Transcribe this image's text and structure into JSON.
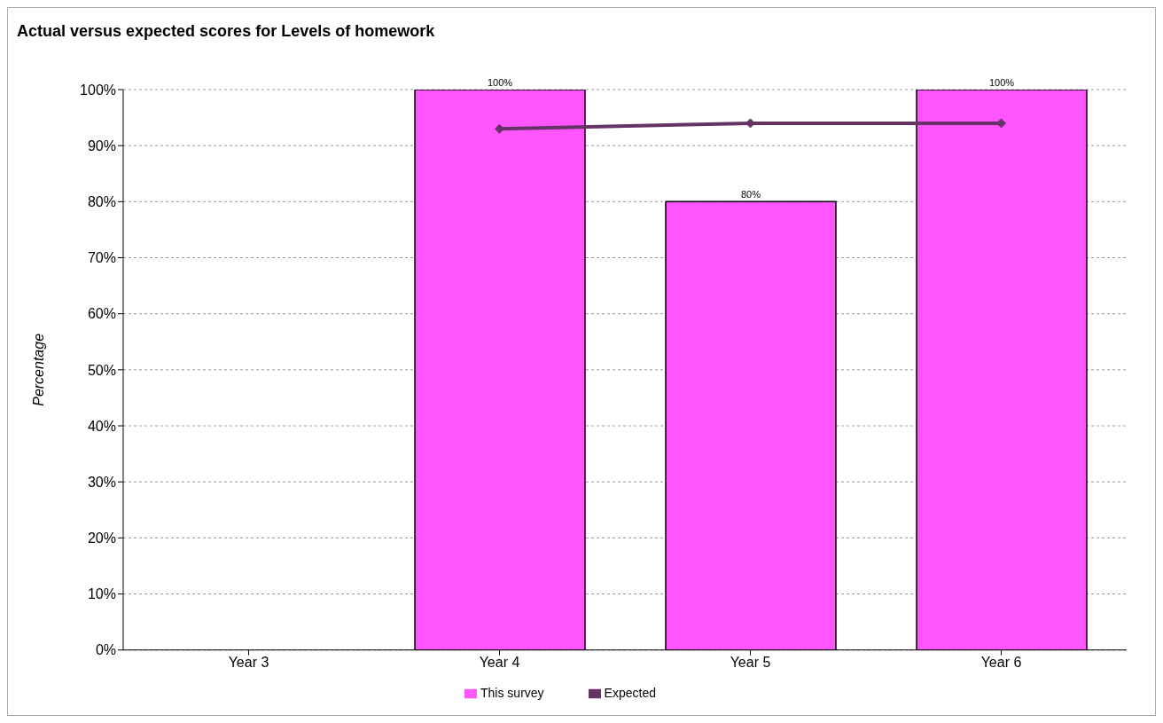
{
  "chart_data": {
    "type": "bar",
    "title": "Actual versus expected scores for Levels of homework",
    "ylabel": "Percentage",
    "categories": [
      "Year 3",
      "Year 4",
      "Year 5",
      "Year 6"
    ],
    "series": [
      {
        "name": "This survey",
        "color": "#ff55ff",
        "values": [
          null,
          100,
          80,
          100
        ],
        "value_labels": [
          null,
          "100%",
          "80%",
          "100%"
        ]
      },
      {
        "name": "Expected",
        "type": "line",
        "color": "#663366",
        "values": [
          null,
          93,
          94,
          94
        ],
        "marker": "diamond",
        "line_style": "solid"
      }
    ],
    "ylim": [
      0,
      100
    ],
    "yticks": [
      {
        "value": 0,
        "label": "0%"
      },
      {
        "value": 10,
        "label": "10%"
      },
      {
        "value": 20,
        "label": "20%"
      },
      {
        "value": 30,
        "label": "30%"
      },
      {
        "value": 40,
        "label": "40%"
      },
      {
        "value": 50,
        "label": "50%"
      },
      {
        "value": 60,
        "label": "60%"
      },
      {
        "value": 70,
        "label": "70%"
      },
      {
        "value": 80,
        "label": "80%"
      },
      {
        "value": 90,
        "label": "90%"
      },
      {
        "value": 100,
        "label": "100%"
      }
    ],
    "grid": "y",
    "legend": "bottom"
  }
}
